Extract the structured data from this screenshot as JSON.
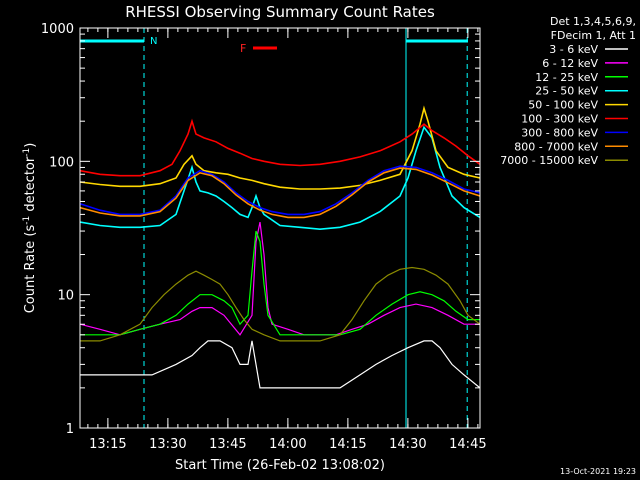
{
  "chart_data": {
    "type": "line",
    "title": "RHESSI Observing Summary Count Rates",
    "xlabel": "Start Time (26-Feb-02 13:08:02)",
    "ylabel_main": "Count Rate (s",
    "ylabel_sup1": "-1",
    "ylabel_mid": " detector",
    "ylabel_sup2": "-1",
    "ylabel_end": ")",
    "y_scale": "log",
    "ylim": [
      1,
      1000
    ],
    "xlim_minutes": [
      0,
      100
    ],
    "x_ticks": [
      {
        "label": "13:15",
        "min": 6.97
      },
      {
        "label": "13:30",
        "min": 21.97
      },
      {
        "label": "13:45",
        "min": 36.97
      },
      {
        "label": "14:00",
        "min": 51.97
      },
      {
        "label": "14:15",
        "min": 66.97
      },
      {
        "label": "14:30",
        "min": 81.97
      },
      {
        "label": "14:45",
        "min": 96.97
      }
    ],
    "y_ticks": [
      {
        "label": "1",
        "value": 1
      },
      {
        "label": "10",
        "value": 10
      },
      {
        "label": "100",
        "value": 100
      },
      {
        "label": "1000",
        "value": 1000
      }
    ],
    "legend_position": "top-right (outside plot)",
    "legend_header": [
      "Det 1,3,4,5,6,9,",
      "FDecim 1, Att 1"
    ],
    "series": [
      {
        "name": "3 - 6 keV",
        "color": "#ffffff",
        "points": [
          [
            0,
            2.5
          ],
          [
            8,
            2.5
          ],
          [
            13,
            2.5
          ],
          [
            18,
            2.5
          ],
          [
            24,
            3
          ],
          [
            28,
            3.5
          ],
          [
            30,
            4
          ],
          [
            32,
            4.5
          ],
          [
            35,
            4.5
          ],
          [
            38,
            4
          ],
          [
            40,
            3
          ],
          [
            42,
            3
          ],
          [
            43,
            4.5
          ],
          [
            45,
            2
          ],
          [
            50,
            2
          ],
          [
            55,
            2
          ],
          [
            60,
            2
          ],
          [
            65,
            2
          ],
          [
            70,
            2.5
          ],
          [
            74,
            3
          ],
          [
            78,
            3.5
          ],
          [
            82,
            4
          ],
          [
            86,
            4.5
          ],
          [
            88,
            4.5
          ],
          [
            90,
            4
          ],
          [
            93,
            3
          ],
          [
            96,
            2.5
          ],
          [
            100,
            2
          ]
        ]
      },
      {
        "name": "6 - 12 keV",
        "color": "#ff00ff",
        "points": [
          [
            0,
            6
          ],
          [
            5,
            5.5
          ],
          [
            10,
            5
          ],
          [
            15,
            5.5
          ],
          [
            20,
            6
          ],
          [
            25,
            6.5
          ],
          [
            28,
            7.5
          ],
          [
            30,
            8
          ],
          [
            33,
            8
          ],
          [
            36,
            7
          ],
          [
            40,
            5
          ],
          [
            43,
            7
          ],
          [
            44,
            25
          ],
          [
            45,
            35
          ],
          [
            46,
            20
          ],
          [
            47,
            8
          ],
          [
            48,
            6
          ],
          [
            52,
            5.5
          ],
          [
            56,
            5
          ],
          [
            60,
            5
          ],
          [
            64,
            5
          ],
          [
            68,
            5.5
          ],
          [
            72,
            6
          ],
          [
            76,
            7
          ],
          [
            80,
            8
          ],
          [
            84,
            8.5
          ],
          [
            88,
            8
          ],
          [
            92,
            7
          ],
          [
            96,
            6
          ],
          [
            100,
            6
          ]
        ]
      },
      {
        "name": "12 - 25 keV",
        "color": "#00ff00",
        "points": [
          [
            0,
            5
          ],
          [
            5,
            5
          ],
          [
            10,
            5
          ],
          [
            15,
            5.5
          ],
          [
            20,
            6
          ],
          [
            24,
            7
          ],
          [
            27,
            8.5
          ],
          [
            30,
            10
          ],
          [
            33,
            10
          ],
          [
            36,
            9
          ],
          [
            38,
            8
          ],
          [
            40,
            6
          ],
          [
            42,
            7
          ],
          [
            43,
            15
          ],
          [
            44,
            30
          ],
          [
            45,
            25
          ],
          [
            46,
            12
          ],
          [
            47,
            7
          ],
          [
            50,
            5
          ],
          [
            55,
            5
          ],
          [
            60,
            5
          ],
          [
            65,
            5
          ],
          [
            70,
            5.5
          ],
          [
            74,
            7
          ],
          [
            78,
            8.5
          ],
          [
            82,
            10
          ],
          [
            85,
            10.5
          ],
          [
            88,
            10
          ],
          [
            91,
            9
          ],
          [
            94,
            7.5
          ],
          [
            97,
            6.5
          ],
          [
            100,
            6.5
          ]
        ]
      },
      {
        "name": "25 - 50 keV",
        "color": "#00ffff",
        "points": [
          [
            0,
            35
          ],
          [
            5,
            33
          ],
          [
            10,
            32
          ],
          [
            15,
            32
          ],
          [
            20,
            33
          ],
          [
            24,
            40
          ],
          [
            26,
            60
          ],
          [
            28,
            90
          ],
          [
            29,
            70
          ],
          [
            30,
            60
          ],
          [
            32,
            58
          ],
          [
            34,
            55
          ],
          [
            36,
            50
          ],
          [
            38,
            45
          ],
          [
            40,
            40
          ],
          [
            42,
            38
          ],
          [
            43,
            45
          ],
          [
            44,
            55
          ],
          [
            45,
            45
          ],
          [
            46,
            40
          ],
          [
            50,
            33
          ],
          [
            55,
            32
          ],
          [
            60,
            31
          ],
          [
            65,
            32
          ],
          [
            70,
            35
          ],
          [
            75,
            42
          ],
          [
            80,
            55
          ],
          [
            82,
            75
          ],
          [
            84,
            120
          ],
          [
            86,
            180
          ],
          [
            88,
            150
          ],
          [
            90,
            90
          ],
          [
            93,
            55
          ],
          [
            96,
            45
          ],
          [
            100,
            38
          ]
        ]
      },
      {
        "name": "50 - 100 keV",
        "color": "#ffd800",
        "points": [
          [
            0,
            70
          ],
          [
            5,
            67
          ],
          [
            10,
            65
          ],
          [
            15,
            65
          ],
          [
            20,
            68
          ],
          [
            24,
            75
          ],
          [
            26,
            95
          ],
          [
            28,
            110
          ],
          [
            29,
            95
          ],
          [
            31,
            85
          ],
          [
            34,
            82
          ],
          [
            37,
            80
          ],
          [
            40,
            75
          ],
          [
            43,
            72
          ],
          [
            46,
            68
          ],
          [
            50,
            64
          ],
          [
            55,
            62
          ],
          [
            60,
            62
          ],
          [
            65,
            63
          ],
          [
            70,
            66
          ],
          [
            75,
            72
          ],
          [
            80,
            80
          ],
          [
            83,
            120
          ],
          [
            85,
            190
          ],
          [
            86,
            250
          ],
          [
            87,
            200
          ],
          [
            89,
            120
          ],
          [
            92,
            90
          ],
          [
            96,
            80
          ],
          [
            100,
            75
          ]
        ]
      },
      {
        "name": "100 - 300 keV",
        "color": "#ff0000",
        "points": [
          [
            0,
            85
          ],
          [
            5,
            80
          ],
          [
            10,
            78
          ],
          [
            15,
            78
          ],
          [
            20,
            85
          ],
          [
            23,
            95
          ],
          [
            25,
            120
          ],
          [
            27,
            160
          ],
          [
            28,
            200
          ],
          [
            29,
            160
          ],
          [
            31,
            150
          ],
          [
            34,
            140
          ],
          [
            37,
            125
          ],
          [
            40,
            115
          ],
          [
            43,
            105
          ],
          [
            46,
            100
          ],
          [
            50,
            95
          ],
          [
            55,
            93
          ],
          [
            60,
            95
          ],
          [
            65,
            100
          ],
          [
            70,
            108
          ],
          [
            75,
            120
          ],
          [
            80,
            140
          ],
          [
            83,
            160
          ],
          [
            86,
            190
          ],
          [
            88,
            170
          ],
          [
            91,
            150
          ],
          [
            94,
            130
          ],
          [
            97,
            110
          ],
          [
            100,
            95
          ]
        ]
      },
      {
        "name": "300 - 800 keV",
        "color": "#0000ff",
        "points": [
          [
            0,
            48
          ],
          [
            5,
            43
          ],
          [
            10,
            40
          ],
          [
            15,
            40
          ],
          [
            20,
            43
          ],
          [
            24,
            55
          ],
          [
            27,
            75
          ],
          [
            30,
            85
          ],
          [
            33,
            80
          ],
          [
            36,
            70
          ],
          [
            39,
            58
          ],
          [
            42,
            50
          ],
          [
            45,
            45
          ],
          [
            48,
            42
          ],
          [
            52,
            40
          ],
          [
            56,
            40
          ],
          [
            60,
            42
          ],
          [
            64,
            48
          ],
          [
            68,
            58
          ],
          [
            72,
            72
          ],
          [
            76,
            85
          ],
          [
            80,
            92
          ],
          [
            84,
            90
          ],
          [
            88,
            82
          ],
          [
            92,
            72
          ],
          [
            96,
            62
          ],
          [
            100,
            58
          ]
        ]
      },
      {
        "name": "800 - 7000 keV",
        "color": "#ff8c00",
        "points": [
          [
            0,
            45
          ],
          [
            5,
            41
          ],
          [
            10,
            39
          ],
          [
            15,
            39
          ],
          [
            20,
            42
          ],
          [
            24,
            53
          ],
          [
            27,
            72
          ],
          [
            30,
            82
          ],
          [
            33,
            78
          ],
          [
            36,
            68
          ],
          [
            39,
            56
          ],
          [
            42,
            48
          ],
          [
            45,
            43
          ],
          [
            48,
            40
          ],
          [
            52,
            38
          ],
          [
            56,
            38
          ],
          [
            60,
            40
          ],
          [
            64,
            46
          ],
          [
            68,
            56
          ],
          [
            72,
            70
          ],
          [
            76,
            82
          ],
          [
            80,
            89
          ],
          [
            84,
            87
          ],
          [
            88,
            79
          ],
          [
            92,
            69
          ],
          [
            96,
            60
          ],
          [
            100,
            55
          ]
        ]
      },
      {
        "name": "7000 - 15000 keV",
        "color": "#8b8b00",
        "points": [
          [
            0,
            4.5
          ],
          [
            5,
            4.5
          ],
          [
            10,
            5
          ],
          [
            15,
            6
          ],
          [
            18,
            8
          ],
          [
            21,
            10
          ],
          [
            24,
            12
          ],
          [
            27,
            14
          ],
          [
            29,
            15
          ],
          [
            31,
            14
          ],
          [
            33,
            13
          ],
          [
            35,
            12
          ],
          [
            37,
            10
          ],
          [
            39,
            8
          ],
          [
            41,
            6.5
          ],
          [
            43,
            5.5
          ],
          [
            46,
            5
          ],
          [
            50,
            4.5
          ],
          [
            55,
            4.5
          ],
          [
            60,
            4.5
          ],
          [
            65,
            5
          ],
          [
            68,
            6.5
          ],
          [
            71,
            9
          ],
          [
            74,
            12
          ],
          [
            77,
            14
          ],
          [
            80,
            15.5
          ],
          [
            83,
            16
          ],
          [
            86,
            15.5
          ],
          [
            89,
            14
          ],
          [
            92,
            12
          ],
          [
            95,
            9
          ],
          [
            97,
            7
          ],
          [
            100,
            6
          ]
        ]
      }
    ],
    "annotations": {
      "flare_label": "F",
      "night_label": "N"
    },
    "timestamp": "13-Oct-2021 19:23"
  }
}
